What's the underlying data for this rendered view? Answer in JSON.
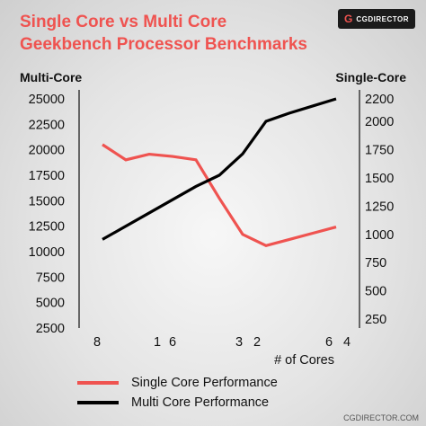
{
  "header": {
    "title_line1": "Single Core vs Multi Core",
    "title_line2": "Geekbench Processor Benchmarks",
    "logo_text": "CGDIRECTOR",
    "logo_mark": "G"
  },
  "credit": "CGDIRECTOR.COM",
  "colors": {
    "accent": "#ef5350",
    "multi": "#000000",
    "single": "#ef5350"
  },
  "chart_data": {
    "type": "line",
    "title": "Single Core vs Multi Core Geekbench Processor Benchmarks",
    "xlabel": "# of Cores",
    "x_ticks": [
      "8",
      "16",
      "32",
      "64"
    ],
    "y_left": {
      "label": "Multi-Core",
      "ticks": [
        "25000",
        "22500",
        "20000",
        "17500",
        "15000",
        "12500",
        "10000",
        "7500",
        "5000",
        "2500"
      ],
      "range": [
        2500,
        25000
      ]
    },
    "y_right": {
      "label": "Single-Core",
      "ticks": [
        "2200",
        "2000",
        "1750",
        "1500",
        "1250",
        "1000",
        "750",
        "500",
        "250"
      ],
      "range": [
        250,
        2200
      ]
    },
    "series": [
      {
        "name": "Single Core Performance",
        "axis": "right",
        "color": "#ef5350",
        "points": [
          [
            8,
            1795
          ],
          [
            16,
            1660
          ],
          [
            24,
            1710
          ],
          [
            32,
            1690
          ],
          [
            40,
            1660
          ],
          [
            48,
            1320
          ],
          [
            56,
            1000
          ],
          [
            64,
            900
          ],
          [
            72,
            955
          ],
          [
            80,
            1010
          ],
          [
            88,
            1065
          ]
        ]
      },
      {
        "name": "Multi Core Performance",
        "axis": "left",
        "color": "#000000",
        "points": [
          [
            8,
            11200
          ],
          [
            24,
            13800
          ],
          [
            32,
            15100
          ],
          [
            40,
            16400
          ],
          [
            48,
            17500
          ],
          [
            56,
            19600
          ],
          [
            64,
            22800
          ],
          [
            72,
            23600
          ],
          [
            80,
            24300
          ],
          [
            88,
            25000
          ]
        ]
      }
    ],
    "legend": "bottom-left"
  }
}
